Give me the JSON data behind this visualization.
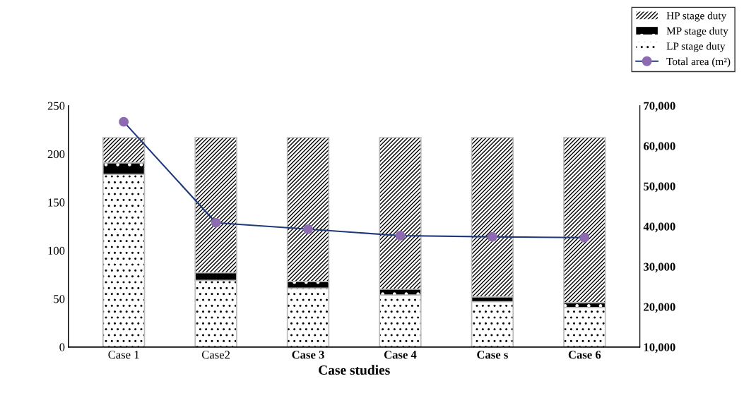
{
  "chart_data": {
    "type": "bar",
    "stacked": true,
    "xlabel": "Case studies",
    "categories": [
      "Case 1",
      "Case2",
      "Case 3",
      "Case 4",
      "Case s",
      "Case 6"
    ],
    "series": [
      {
        "name": "LP stage duty",
        "color": "#ffffff",
        "values": [
          179,
          69,
          61,
          54,
          47,
          41
        ]
      },
      {
        "name": "MP stage duty",
        "color": "#000000",
        "values": [
          12,
          8,
          7,
          6,
          5,
          5
        ]
      },
      {
        "name": "HP stage duty",
        "color": "#ffffff",
        "values": [
          26,
          140,
          149,
          157,
          165,
          171
        ]
      },
      {
        "name": "Total area (m²)",
        "type": "line",
        "axis": "y2",
        "color": "#1f3a7a",
        "values": [
          66000,
          40900,
          39300,
          37700,
          37400,
          37200
        ]
      }
    ],
    "ylim": [
      0,
      250
    ],
    "yticks": [
      0,
      50,
      100,
      150,
      200,
      250
    ],
    "y2lim": [
      10000,
      70000
    ],
    "y2ticks": [
      {
        "value": 10000,
        "label": "10,000"
      },
      {
        "value": 20000,
        "label": "20,000"
      },
      {
        "value": 30000,
        "label": "30,000"
      },
      {
        "value": 40000,
        "label": "40,000"
      },
      {
        "value": 50000,
        "label": "50,000"
      },
      {
        "value": 60000,
        "label": "60,000"
      },
      {
        "value": 70000,
        "label": "70,000"
      }
    ],
    "marker": "circle",
    "legend": "top right",
    "grid": false
  }
}
